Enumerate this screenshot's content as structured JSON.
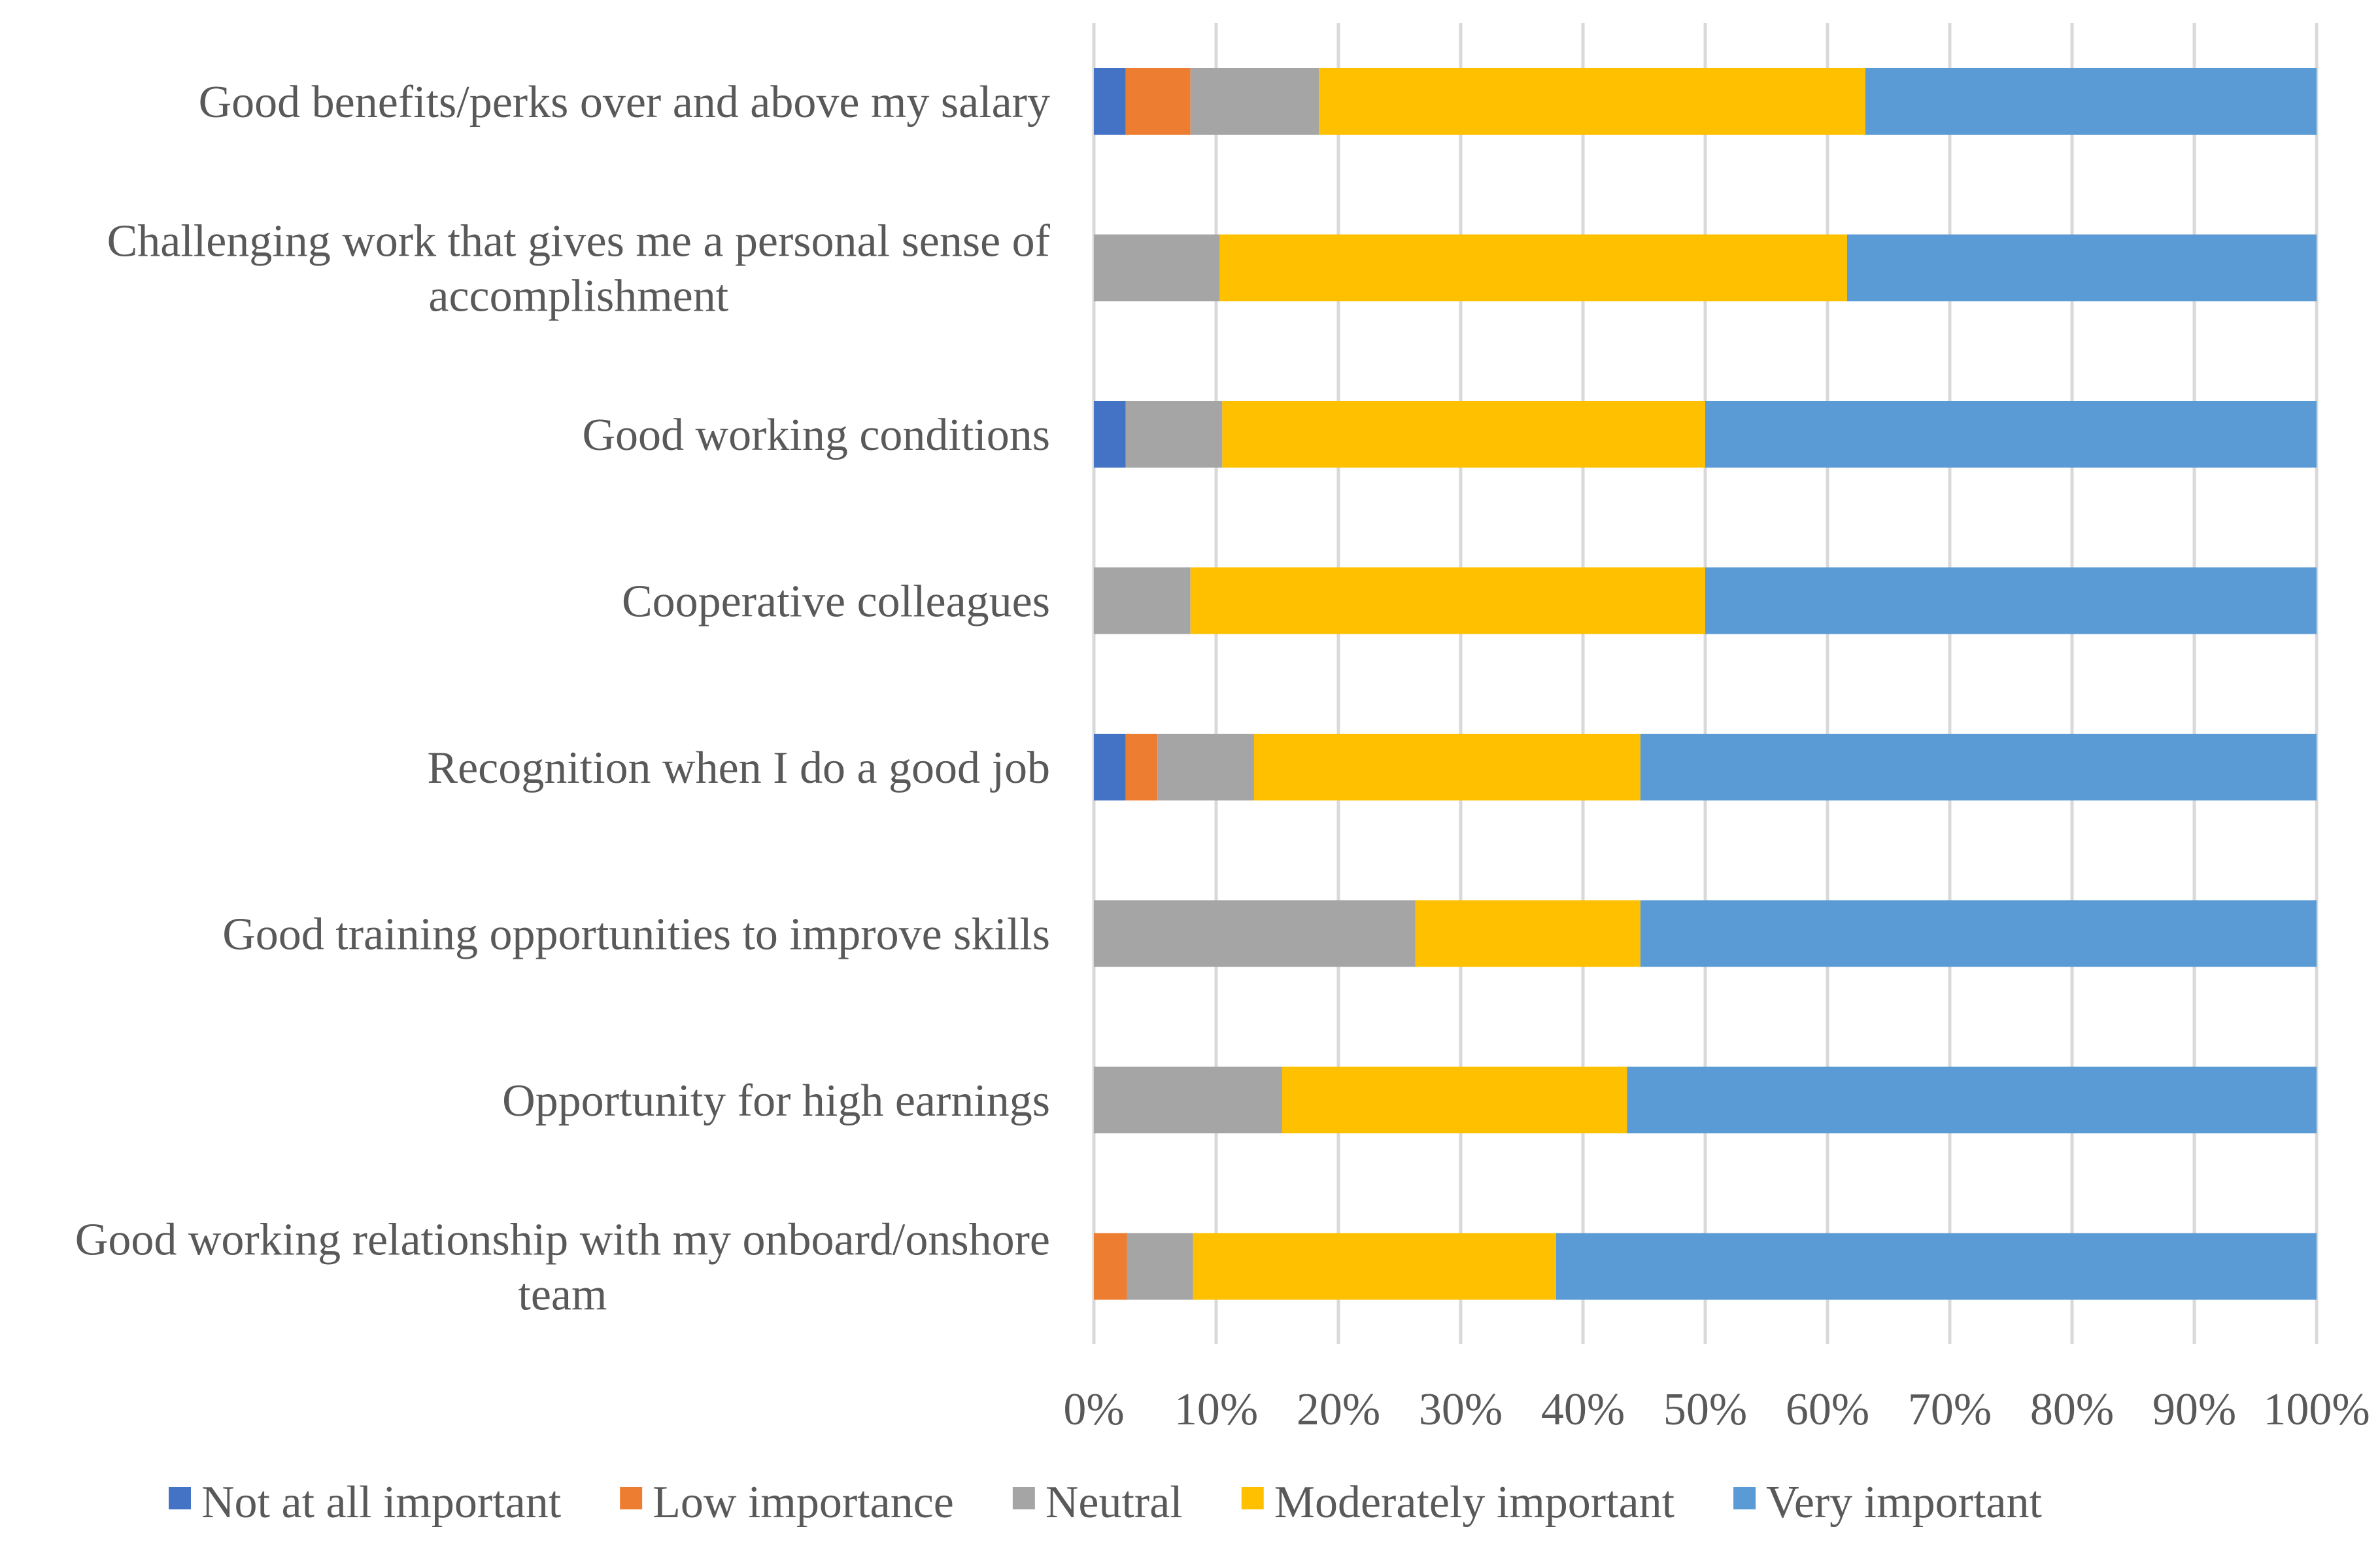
{
  "chart_data": {
    "type": "bar",
    "orientation": "horizontal",
    "stacked": "percent",
    "title": "",
    "xlabel": "",
    "ylabel": "",
    "xlim": [
      0,
      100
    ],
    "grid": "vertical",
    "legend_position": "bottom",
    "categories": [
      "Good benefits/perks over and above my salary",
      "Challenging work that gives me a personal sense of accomplishment",
      "Good working conditions",
      "Cooperative colleagues",
      "Recognition when I do a good job",
      "Good training opportunities to improve skills",
      "Opportunity for high earnings",
      "Good working relationship with my onboard/onshore team"
    ],
    "category_lines": [
      [
        "Good benefits/perks over and above my salary"
      ],
      [
        "Challenging work that gives me a personal sense of",
        "accomplishment"
      ],
      [
        "Good working conditions"
      ],
      [
        "Cooperative colleagues"
      ],
      [
        "Recognition when I do a good job"
      ],
      [
        "Good training opportunities to improve skills"
      ],
      [
        "Opportunity for high earnings"
      ],
      [
        "Good working relationship with my onboard/onshore",
        "team"
      ]
    ],
    "x_ticks": [
      "0%",
      "10%",
      "20%",
      "30%",
      "40%",
      "50%",
      "60%",
      "70%",
      "80%",
      "90%",
      "100%"
    ],
    "series": [
      {
        "name": "Not at all important",
        "color": "#4472c4",
        "values": [
          2.6,
          0,
          2.6,
          0,
          2.6,
          0,
          0,
          0
        ]
      },
      {
        "name": "Low importance",
        "color": "#ed7d31",
        "values": [
          5.3,
          0,
          0,
          0,
          2.6,
          0,
          0,
          2.7
        ]
      },
      {
        "name": "Neutral",
        "color": "#a5a5a5",
        "values": [
          10.5,
          10.3,
          7.9,
          7.9,
          7.9,
          26.3,
          15.4,
          5.4
        ]
      },
      {
        "name": "Moderately important",
        "color": "#ffc000",
        "values": [
          44.7,
          51.3,
          39.5,
          42.1,
          31.6,
          18.4,
          28.2,
          29.7
        ]
      },
      {
        "name": "Very important",
        "color": "#5b9bd5",
        "values": [
          36.9,
          38.4,
          50.0,
          50.0,
          55.3,
          55.3,
          56.4,
          62.2
        ]
      }
    ]
  }
}
